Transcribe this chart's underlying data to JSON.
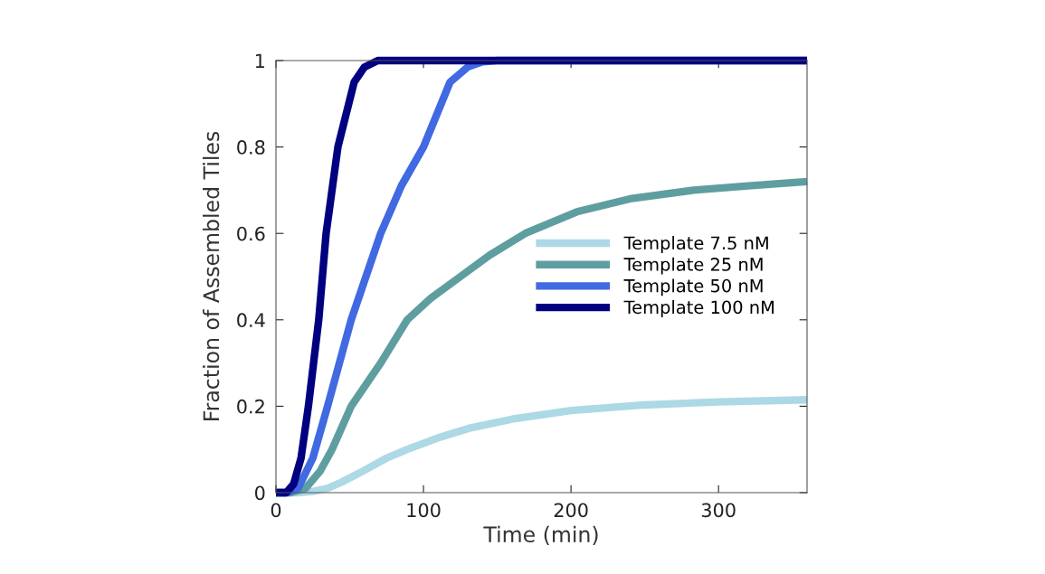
{
  "chart_data": {
    "type": "line",
    "xlabel": "Time (min)",
    "ylabel": "Fraction of Assembled Tiles",
    "xlim": [
      0,
      360
    ],
    "xticks": [
      0,
      100,
      200,
      300
    ],
    "ylim": [
      0,
      1
    ],
    "yticks": [
      0,
      0.2,
      0.4,
      0.6,
      0.8,
      1
    ],
    "grid": false,
    "legend": "right",
    "line_style": "solid",
    "series": [
      {
        "name": "Template 7.5 nM",
        "color": "#add8e6",
        "x": [
          0,
          15,
          25,
          35,
          45,
          59,
          75,
          89,
          110,
          132,
          160,
          200,
          250,
          300,
          360
        ],
        "values": [
          0,
          0,
          0.003,
          0.01,
          0.025,
          0.05,
          0.08,
          0.1,
          0.127,
          0.15,
          0.17,
          0.19,
          0.203,
          0.21,
          0.215
        ]
      },
      {
        "name": "Template 25 nM",
        "color": "#5f9ea0",
        "x": [
          0,
          10,
          20,
          30,
          38,
          51,
          71,
          89,
          105,
          125,
          145,
          169,
          204,
          240,
          283,
          320,
          360
        ],
        "values": [
          0,
          0,
          0.01,
          0.05,
          0.1,
          0.2,
          0.3,
          0.4,
          0.45,
          0.5,
          0.55,
          0.6,
          0.65,
          0.68,
          0.7,
          0.71,
          0.72
        ]
      },
      {
        "name": "Template 50 nM",
        "color": "#4169e1",
        "x": [
          0,
          8,
          15,
          25,
          35,
          51,
          71,
          85,
          100,
          118,
          130,
          140,
          150,
          360
        ],
        "values": [
          0,
          0,
          0.01,
          0.08,
          0.2,
          0.4,
          0.6,
          0.71,
          0.8,
          0.95,
          0.985,
          0.997,
          1,
          1
        ]
      },
      {
        "name": "Template 100 nM",
        "color": "#000080",
        "x": [
          0,
          7,
          12,
          17,
          22,
          29,
          34,
          42,
          53,
          60,
          69,
          360
        ],
        "values": [
          0,
          0,
          0.02,
          0.08,
          0.2,
          0.4,
          0.6,
          0.8,
          0.95,
          0.985,
          1,
          1
        ]
      }
    ]
  }
}
